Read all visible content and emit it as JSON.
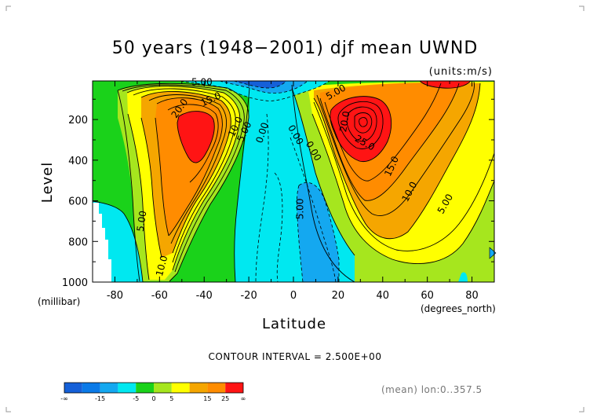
{
  "chart_data": {
    "type": "contour",
    "title": "50 years (1948−2001) djf mean UWND",
    "units": "(units:m/s)",
    "xlabel": "Latitude",
    "ylabel": "Level",
    "x_unit_label": "(degrees_north)",
    "y_unit_label": "(millibar)",
    "xlim": [
      -90,
      90
    ],
    "ylim": [
      1000,
      10
    ],
    "x_ticks": [
      -80,
      -60,
      -40,
      -20,
      0,
      20,
      40,
      60,
      80
    ],
    "y_ticks": [
      200,
      400,
      600,
      800,
      1000
    ],
    "contour_interval_text": "CONTOUR INTERVAL = 2.500E+00",
    "footnote": "(mean) lon:0..357.5",
    "color_levels": [
      {
        "range": "<-15",
        "color": "#1560d8"
      },
      {
        "range": "-15..-10",
        "color": "#0a7ae8"
      },
      {
        "range": "-10..-5",
        "color": "#14a8f0"
      },
      {
        "range": "-5..0",
        "color": "#00e8f0"
      },
      {
        "range": "0..5",
        "color": "#1ad21a"
      },
      {
        "range": "5..10",
        "color": "#a6e61e"
      },
      {
        "range": "10..15",
        "color": "#ffff00"
      },
      {
        "range": "15..20",
        "color": "#f5a600"
      },
      {
        "range": "20..25",
        "color": "#ff8c00"
      },
      {
        "range": ">25",
        "color": "#ff1414"
      }
    ],
    "colorbar_labels": [
      "-∞",
      "-15",
      "-5",
      "0",
      "5",
      "15",
      "25",
      "∞"
    ],
    "features": [
      {
        "name": "southern hemisphere subtropical jet",
        "lat": -46,
        "level_mb": 240,
        "max_ms": 25
      },
      {
        "name": "northern hemisphere subtropical jet",
        "lat": 30,
        "level_mb": 200,
        "max_ms": 40
      },
      {
        "name": "equatorial easterlies",
        "lat": 7,
        "level_mb": 700,
        "min_ms": -7
      },
      {
        "name": "tropical upper easterlies",
        "lat": -8,
        "level_mb": 20,
        "min_ms": -10
      }
    ],
    "contour_labels": [
      {
        "text": "5.00",
        "lat": -41,
        "level": 15,
        "rot": 0
      },
      {
        "text": "5.00",
        "lat": 19,
        "level": 65,
        "rot": -30
      },
      {
        "text": "20.0",
        "lat": -51,
        "level": 145,
        "rot": -55
      },
      {
        "text": "15.0",
        "lat": -37,
        "level": 100,
        "rot": -25
      },
      {
        "text": "10.0",
        "lat": -26,
        "level": 235,
        "rot": -65
      },
      {
        "text": "5.00",
        "lat": -22,
        "level": 260,
        "rot": -65
      },
      {
        "text": "0.00",
        "lat": -14,
        "level": 265,
        "rot": -72
      },
      {
        "text": "0.00",
        "lat": 1,
        "level": 275,
        "rot": 60
      },
      {
        "text": "0.00",
        "lat": 9,
        "level": 355,
        "rot": 60
      },
      {
        "text": "20.0",
        "lat": 23,
        "level": 210,
        "rot": -80
      },
      {
        "text": "25.0",
        "lat": 32,
        "level": 315,
        "rot": 30
      },
      {
        "text": "15.0",
        "lat": 44,
        "level": 430,
        "rot": -65
      },
      {
        "text": "10.0",
        "lat": 52,
        "level": 555,
        "rot": -62
      },
      {
        "text": "5.00",
        "lat": 68,
        "level": 615,
        "rot": -60
      },
      {
        "text": "5.00",
        "lat": 3,
        "level": 640,
        "rot": -90
      },
      {
        "text": "5.00",
        "lat": -68,
        "level": 700,
        "rot": -82
      },
      {
        "text": "10.0",
        "lat": -59,
        "level": 920,
        "rot": -75
      }
    ]
  }
}
